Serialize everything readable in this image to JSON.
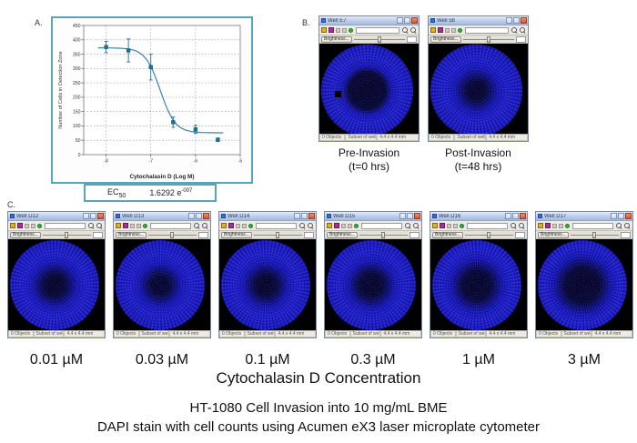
{
  "colors": {
    "accent_teal": "#58a5b8",
    "curve": "#3d84a8",
    "point": "#1f6f9f",
    "well_blue": "#1c1cd8"
  },
  "panel_a": {
    "label": "A.",
    "ec50_label": "EC",
    "ec50_sub": "50",
    "ec50_value": "1.6292 e",
    "ec50_exp": "-007"
  },
  "chart_data": {
    "type": "scatter",
    "title": "",
    "xlabel": "Cytochalasin D (Log M)",
    "ylabel": "Number of Cells in Detection Zone",
    "xlim": [
      -8.5,
      -5.0
    ],
    "ylim": [
      0,
      450
    ],
    "x_ticks": [
      -8,
      -7,
      -6,
      -5
    ],
    "y_ticks": [
      0,
      50,
      100,
      150,
      200,
      250,
      300,
      350,
      400,
      450
    ],
    "grid": true,
    "x": [
      -8.0,
      -7.5,
      -7.0,
      -6.5,
      -6.0,
      -5.5
    ],
    "y": [
      375,
      363,
      305,
      113,
      88,
      52
    ],
    "yerr": [
      20,
      40,
      45,
      18,
      14,
      6
    ],
    "fit": {
      "top": 372,
      "bottom": 76,
      "log_ec50": -6.788,
      "hill": 2.6
    },
    "ec50_text": "EC50 = 1.6292 e-007"
  },
  "window_chrome": {
    "brightness_label": "Brightness...",
    "status_segments": [
      "0 Objects",
      "Subset of well",
      "4.4 x 4.4 mm"
    ]
  },
  "panel_b": {
    "label": "B.",
    "wells": [
      {
        "title": "Well E7",
        "caption_line1": "Pre-Invasion",
        "caption_line2": "(t=0 hrs)",
        "core": 0.34,
        "sharp": true,
        "spot": true
      },
      {
        "title": "Well 5b",
        "caption_line1": "Post-Invasion",
        "caption_line2": "(t=48 hrs)",
        "core": 0.2,
        "sharp": false,
        "spot": false
      }
    ]
  },
  "panel_c": {
    "label": "C.",
    "axis_title": "Cytochalasin D Concentration",
    "wells": [
      {
        "title": "Well D12",
        "label": "0.01 µM",
        "core": 0.22,
        "sharp": false,
        "spot": false
      },
      {
        "title": "Well D13",
        "label": "0.03 µM",
        "core": 0.2,
        "sharp": false,
        "spot": false
      },
      {
        "title": "Well D14",
        "label": "0.1 µM",
        "core": 0.22,
        "sharp": false,
        "spot": false
      },
      {
        "title": "Well D15",
        "label": "0.3 µM",
        "core": 0.24,
        "sharp": false,
        "spot": false
      },
      {
        "title": "Well D16",
        "label": "1 µM",
        "core": 0.28,
        "sharp": false,
        "spot": false
      },
      {
        "title": "Well D17",
        "label": "3 µM",
        "core": 0.33,
        "sharp": false,
        "spot": false
      }
    ]
  },
  "footer": {
    "line1": "HT-1080 Cell Invasion into 10 mg/mL BME",
    "line2": "DAPI stain with cell counts using Acumen eX3 laser microplate cytometer"
  }
}
